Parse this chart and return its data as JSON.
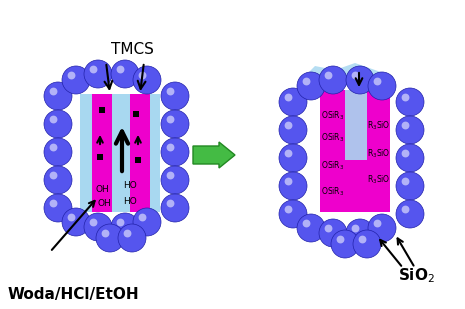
{
  "bg_color": "#ffffff",
  "ball_color_face": "#5555ee",
  "ball_highlight": "#ffffff",
  "gel_blue": "#a8d8f0",
  "magenta": "#ee00cc",
  "arrow_green": "#44bb44",
  "arrow_green_dark": "#228822",
  "tmcs_label": "TMCS",
  "woda_label": "Woda/HCl/EtOH",
  "sio2_label": "SiO$_2$",
  "fig_width": 4.65,
  "fig_height": 3.09,
  "dpi": 100
}
